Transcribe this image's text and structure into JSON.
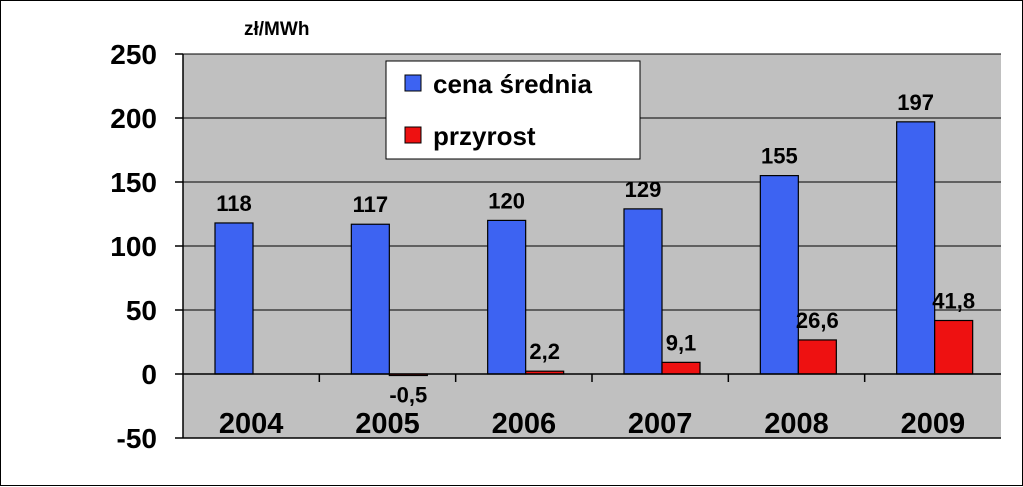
{
  "chart_data": {
    "type": "bar",
    "unit_label": "zł/MWh",
    "categories": [
      "2004",
      "2005",
      "2006",
      "2007",
      "2008",
      "2009"
    ],
    "series": [
      {
        "name": "cena średnia",
        "color": "#3d63f2",
        "values": [
          118,
          117,
          120,
          129,
          155,
          197
        ],
        "labels": [
          "118",
          "117",
          "120",
          "129",
          "155",
          "197"
        ]
      },
      {
        "name": "przyrost",
        "color": "#ee1111",
        "values": [
          null,
          -0.5,
          2.2,
          9.1,
          26.6,
          41.8
        ],
        "labels": [
          "",
          "-0,5",
          "2,2",
          "9,1",
          "26,6",
          "41,8"
        ]
      }
    ],
    "ylim": [
      -50,
      250
    ],
    "yticks": [
      -50,
      0,
      50,
      100,
      150,
      200,
      250
    ],
    "grid": true,
    "legend": "top-center",
    "plot_background": "#c0c0c0"
  }
}
